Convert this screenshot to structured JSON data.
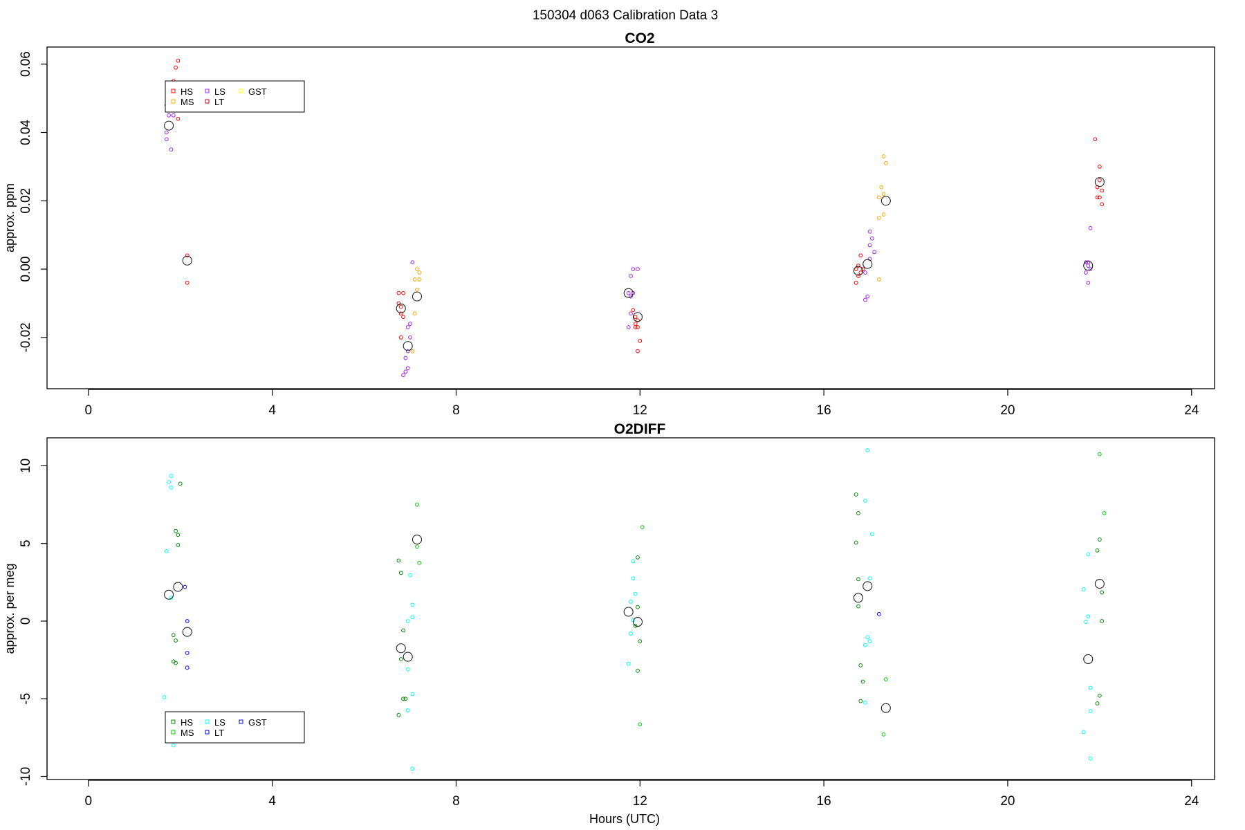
{
  "figure_title": "150304   d063   Calibration Data 3",
  "chart_data": [
    {
      "type": "scatter",
      "title": "CO2",
      "xlabel": "",
      "ylabel": "approx. ppm",
      "xlim": [
        -0.9,
        24.5
      ],
      "ylim": [
        -0.035,
        0.065
      ],
      "xticks": [
        0,
        4,
        8,
        12,
        16,
        20,
        24
      ],
      "xtick_labels": [
        "0",
        "4",
        "8",
        "12",
        "16",
        "20",
        "24"
      ],
      "yticks": [
        -0.02,
        0.0,
        0.02,
        0.04,
        0.06
      ],
      "ytick_labels": [
        "-0.02",
        "0.00",
        "0.02",
        "0.04",
        "0.06"
      ],
      "legend_position": "top-left",
      "series": [
        {
          "name": "HS",
          "color": "#ff0000",
          "points": [
            [
              1.95,
              0.061
            ],
            [
              1.9,
              0.059
            ],
            [
              1.85,
              0.055
            ],
            [
              1.95,
              0.052
            ],
            [
              1.9,
              0.05
            ],
            [
              1.95,
              0.047
            ],
            [
              1.95,
              0.044
            ],
            [
              2.15,
              0.004
            ],
            [
              2.15,
              -0.004
            ],
            [
              6.75,
              -0.007
            ],
            [
              6.85,
              -0.007
            ],
            [
              6.8,
              -0.011
            ],
            [
              6.75,
              -0.01
            ],
            [
              6.8,
              -0.013
            ],
            [
              6.85,
              -0.014
            ],
            [
              6.8,
              -0.02
            ],
            [
              11.85,
              -0.012
            ],
            [
              11.9,
              -0.014
            ],
            [
              11.95,
              -0.015
            ],
            [
              11.9,
              -0.016
            ],
            [
              11.95,
              -0.017
            ],
            [
              11.9,
              -0.017
            ],
            [
              12.0,
              -0.021
            ],
            [
              11.95,
              -0.024
            ],
            [
              16.75,
              0.001
            ],
            [
              16.7,
              0.0
            ],
            [
              16.85,
              0.0
            ],
            [
              16.75,
              -0.002
            ],
            [
              16.8,
              -0.001
            ],
            [
              16.7,
              -0.004
            ],
            [
              16.8,
              0.004
            ],
            [
              21.9,
              0.038
            ],
            [
              22.0,
              0.03
            ],
            [
              22.0,
              0.026
            ],
            [
              21.95,
              0.024
            ],
            [
              22.05,
              0.023
            ],
            [
              21.95,
              0.021
            ],
            [
              22.0,
              0.021
            ],
            [
              22.05,
              0.019
            ]
          ]
        },
        {
          "name": "MS",
          "color": "#ffa500",
          "points": [
            [
              7.15,
              0.0
            ],
            [
              7.2,
              -0.001
            ],
            [
              7.1,
              -0.003
            ],
            [
              7.2,
              -0.003
            ],
            [
              7.15,
              -0.006
            ],
            [
              7.1,
              -0.013
            ],
            [
              7.05,
              -0.024
            ],
            [
              17.3,
              0.033
            ],
            [
              17.35,
              0.031
            ],
            [
              17.25,
              0.024
            ],
            [
              17.3,
              0.022
            ],
            [
              17.2,
              0.021
            ],
            [
              17.3,
              0.016
            ],
            [
              17.2,
              0.015
            ],
            [
              17.2,
              -0.003
            ]
          ]
        },
        {
          "name": "LS",
          "color": "#a020f0",
          "points": [
            [
              1.7,
              0.048
            ],
            [
              1.75,
              0.045
            ],
            [
              1.85,
              0.045
            ],
            [
              1.7,
              0.04
            ],
            [
              1.7,
              0.038
            ],
            [
              1.8,
              0.035
            ],
            [
              7.05,
              0.002
            ],
            [
              7.0,
              -0.016
            ],
            [
              6.95,
              -0.017
            ],
            [
              7.0,
              -0.02
            ],
            [
              6.95,
              -0.024
            ],
            [
              6.9,
              -0.026
            ],
            [
              6.95,
              -0.029
            ],
            [
              6.9,
              -0.03
            ],
            [
              6.85,
              -0.031
            ],
            [
              11.95,
              0.0
            ],
            [
              11.85,
              0.0
            ],
            [
              11.8,
              -0.002
            ],
            [
              11.75,
              -0.007
            ],
            [
              11.85,
              -0.007
            ],
            [
              11.8,
              -0.008
            ],
            [
              11.8,
              -0.013
            ],
            [
              11.75,
              -0.017
            ],
            [
              17.0,
              0.011
            ],
            [
              17.05,
              0.009
            ],
            [
              17.0,
              0.007
            ],
            [
              17.1,
              0.005
            ],
            [
              17.0,
              0.003
            ],
            [
              16.9,
              -0.001
            ],
            [
              16.95,
              -0.008
            ],
            [
              16.9,
              -0.009
            ],
            [
              21.7,
              0.002
            ],
            [
              21.75,
              0.002
            ],
            [
              21.75,
              0.001
            ],
            [
              21.8,
              0.0
            ],
            [
              21.7,
              -0.001
            ],
            [
              21.75,
              -0.004
            ],
            [
              21.8,
              0.012
            ]
          ]
        },
        {
          "name": "LT",
          "color": "#cd0000",
          "points": []
        },
        {
          "name": "GST",
          "color": "#ffff00",
          "points": []
        }
      ],
      "means": [
        [
          1.75,
          0.042
        ],
        [
          2.15,
          0.0025
        ],
        [
          6.8,
          -0.0115
        ],
        [
          6.95,
          -0.0225
        ],
        [
          7.15,
          -0.008
        ],
        [
          11.75,
          -0.007
        ],
        [
          11.95,
          -0.014
        ],
        [
          16.75,
          -0.0005
        ],
        [
          16.95,
          0.0015
        ],
        [
          17.35,
          0.02
        ],
        [
          21.75,
          0.001
        ],
        [
          22.0,
          0.0255
        ]
      ]
    },
    {
      "type": "scatter",
      "title": "O2DIFF",
      "xlabel": "Hours (UTC)",
      "ylabel": "approx. per meg",
      "xlim": [
        -0.9,
        24.5
      ],
      "ylim": [
        -10.2,
        11.8
      ],
      "xticks": [
        0,
        4,
        8,
        12,
        16,
        20,
        24
      ],
      "xtick_labels": [
        "0",
        "4",
        "8",
        "12",
        "16",
        "20",
        "24"
      ],
      "yticks": [
        -10,
        -5,
        0,
        5,
        10
      ],
      "ytick_labels": [
        "-10",
        "-5",
        "0",
        "5",
        "10"
      ],
      "legend_position": "bottom-left",
      "series": [
        {
          "name": "HS",
          "color": "#008b00",
          "points": [
            [
              2.0,
              8.85
            ],
            [
              1.9,
              5.8
            ],
            [
              1.95,
              5.55
            ],
            [
              1.95,
              4.9
            ],
            [
              1.85,
              -0.9
            ],
            [
              1.9,
              -1.25
            ],
            [
              1.85,
              -2.6
            ],
            [
              1.9,
              -2.7
            ],
            [
              6.75,
              3.9
            ],
            [
              6.8,
              3.1
            ],
            [
              6.85,
              -0.6
            ],
            [
              6.8,
              -2.45
            ],
            [
              6.85,
              -5.0
            ],
            [
              6.9,
              -5.0
            ],
            [
              6.75,
              -6.05
            ],
            [
              11.95,
              4.1
            ],
            [
              11.95,
              0.9
            ],
            [
              11.9,
              -0.3
            ],
            [
              12.0,
              -1.3
            ],
            [
              11.95,
              -3.2
            ],
            [
              16.7,
              8.15
            ],
            [
              16.75,
              6.95
            ],
            [
              16.7,
              5.05
            ],
            [
              16.75,
              2.7
            ],
            [
              16.75,
              0.95
            ],
            [
              16.8,
              -2.85
            ],
            [
              16.85,
              -3.9
            ],
            [
              16.8,
              -5.15
            ],
            [
              22.0,
              5.25
            ],
            [
              21.95,
              4.55
            ],
            [
              22.05,
              1.85
            ],
            [
              22.05,
              0.0
            ],
            [
              22.0,
              -4.8
            ],
            [
              21.95,
              -5.3
            ]
          ]
        },
        {
          "name": "MS",
          "color": "#00cd00",
          "points": [
            [
              7.15,
              7.5
            ],
            [
              7.2,
              3.75
            ],
            [
              7.15,
              4.8
            ],
            [
              12.05,
              6.05
            ],
            [
              12.0,
              -6.65
            ],
            [
              17.35,
              -3.75
            ],
            [
              17.3,
              -7.3
            ],
            [
              22.0,
              10.75
            ],
            [
              22.1,
              6.95
            ]
          ]
        },
        {
          "name": "LS",
          "color": "#00ffff",
          "points": [
            [
              1.8,
              9.35
            ],
            [
              1.75,
              8.95
            ],
            [
              1.8,
              8.6
            ],
            [
              1.7,
              4.5
            ],
            [
              1.65,
              -4.9
            ],
            [
              1.85,
              -8.0
            ],
            [
              1.8,
              1.5
            ],
            [
              7.0,
              2.95
            ],
            [
              7.05,
              1.05
            ],
            [
              7.05,
              0.25
            ],
            [
              6.95,
              0.0
            ],
            [
              7.05,
              -4.7
            ],
            [
              6.95,
              -5.75
            ],
            [
              6.95,
              -3.1
            ],
            [
              7.05,
              -9.5
            ],
            [
              11.85,
              3.85
            ],
            [
              11.85,
              2.75
            ],
            [
              11.9,
              1.75
            ],
            [
              11.8,
              1.25
            ],
            [
              11.85,
              0.05
            ],
            [
              11.8,
              -0.8
            ],
            [
              11.75,
              -2.75
            ],
            [
              16.95,
              11.0
            ],
            [
              16.9,
              7.75
            ],
            [
              17.05,
              5.6
            ],
            [
              17.0,
              2.75
            ],
            [
              16.95,
              -1.05
            ],
            [
              17.0,
              -1.3
            ],
            [
              16.9,
              -1.55
            ],
            [
              16.9,
              -5.25
            ],
            [
              21.75,
              4.3
            ],
            [
              21.65,
              2.05
            ],
            [
              21.75,
              0.3
            ],
            [
              21.7,
              -0.05
            ],
            [
              21.8,
              -4.3
            ],
            [
              21.8,
              -5.8
            ],
            [
              21.65,
              -7.15
            ],
            [
              21.8,
              -8.85
            ]
          ]
        },
        {
          "name": "LT",
          "color": "#0000ff",
          "points": [
            [
              2.1,
              2.2
            ],
            [
              2.15,
              0.0
            ],
            [
              2.15,
              -2.05
            ],
            [
              2.15,
              -3.0
            ],
            [
              17.2,
              0.45
            ]
          ]
        },
        {
          "name": "GST",
          "color": "#0000cd",
          "points": []
        }
      ],
      "means": [
        [
          1.75,
          1.7
        ],
        [
          1.95,
          2.2
        ],
        [
          2.15,
          -0.7
        ],
        [
          6.8,
          -1.75
        ],
        [
          6.95,
          -2.3
        ],
        [
          7.15,
          5.25
        ],
        [
          11.75,
          0.6
        ],
        [
          11.95,
          -0.05
        ],
        [
          16.75,
          1.5
        ],
        [
          16.95,
          2.25
        ],
        [
          17.35,
          -5.6
        ],
        [
          21.75,
          -2.45
        ],
        [
          22.0,
          2.4
        ]
      ]
    }
  ]
}
